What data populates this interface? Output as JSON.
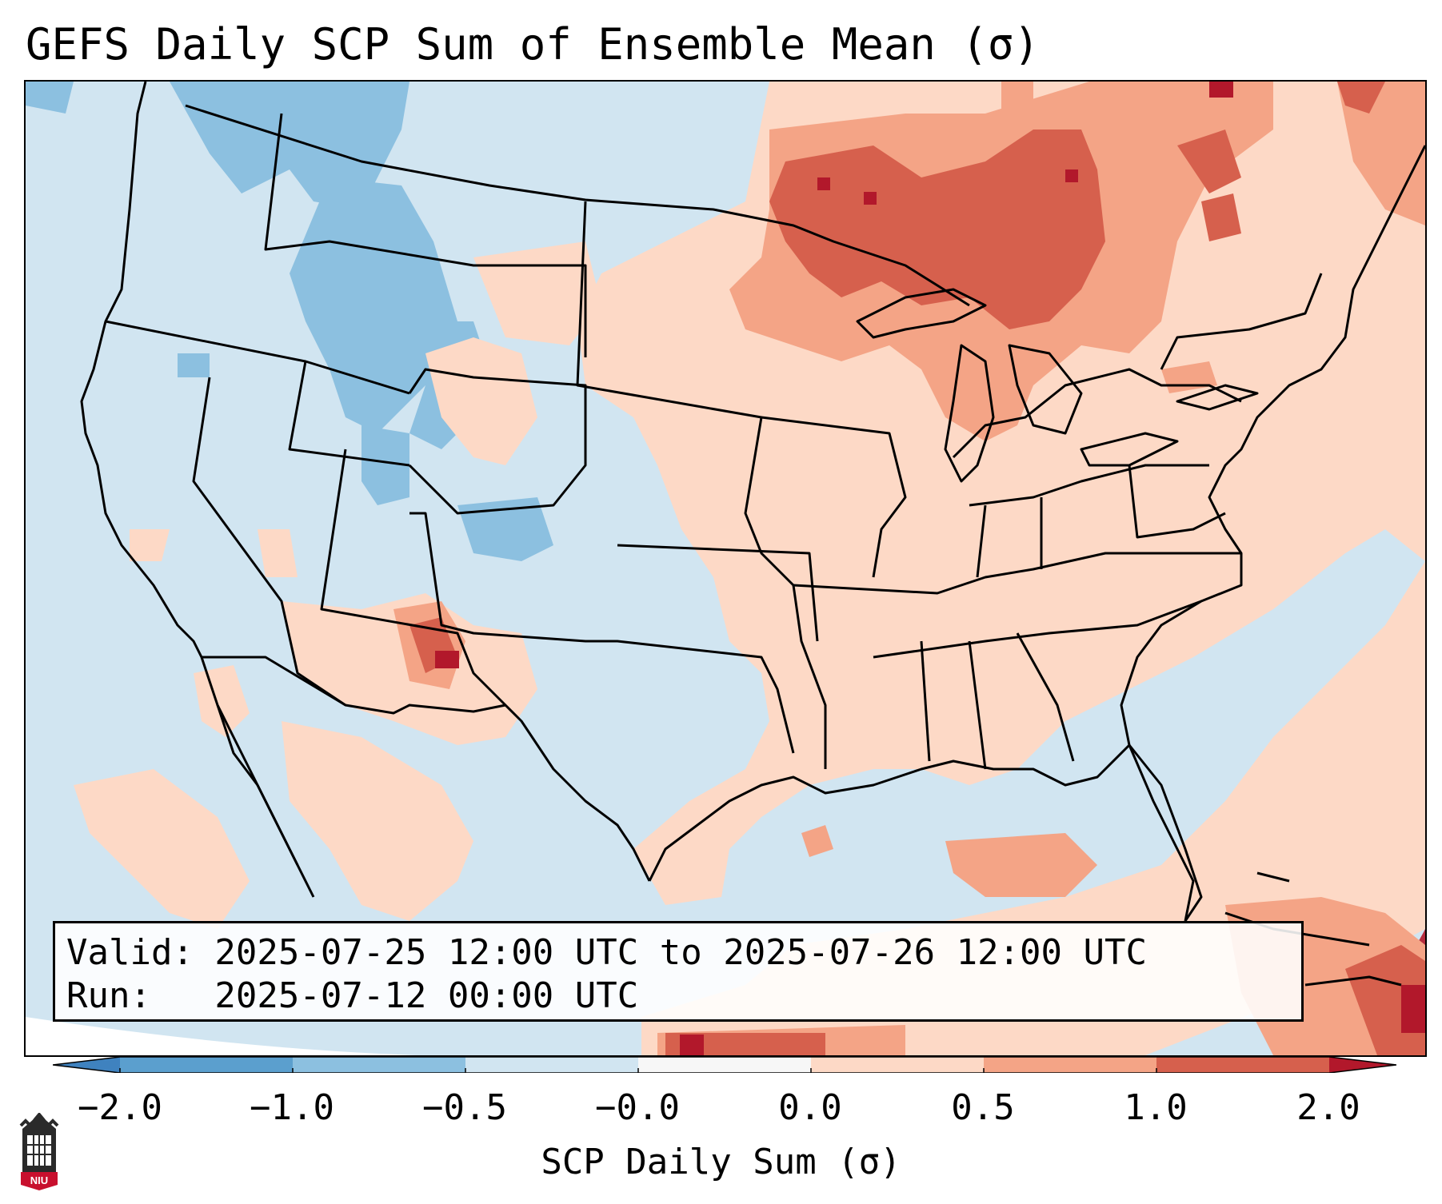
{
  "title": "GEFS Daily SCP Sum of Ensemble Mean (σ)",
  "info": {
    "valid_line": "Valid: 2025-07-25 12:00 UTC to 2025-07-26 12:00 UTC",
    "run_line": "Run:   2025-07-12 00:00 UTC"
  },
  "colorbar": {
    "label": "SCP Daily Sum (σ)",
    "ticks": [
      "−2.0",
      "−1.0",
      "−0.5",
      "−0.0",
      "0.0",
      "0.5",
      "1.0",
      "2.0"
    ],
    "bins": [
      {
        "from": "< -2.0",
        "color": "#3f82bf"
      },
      {
        "from": "-2.0 to -1.0",
        "color": "#5b9fce"
      },
      {
        "from": "-1.0 to -0.5",
        "color": "#8cc0e0"
      },
      {
        "from": "-0.5 to -0.0",
        "color": "#d1e5f1"
      },
      {
        "from": "-0.0 to 0.0",
        "color": "#f7f7f7"
      },
      {
        "from": "0.0 to 0.5",
        "color": "#fdd9c6"
      },
      {
        "from": "0.5 to 1.0",
        "color": "#f4a486"
      },
      {
        "from": "1.0 to 2.0",
        "color": "#d6604d"
      },
      {
        "from": "> 2.0",
        "color": "#b2182b"
      }
    ]
  },
  "colors": {
    "background_field": "#d1e5f1",
    "outside_domain": "#ffffff",
    "borders": "#000000"
  }
}
